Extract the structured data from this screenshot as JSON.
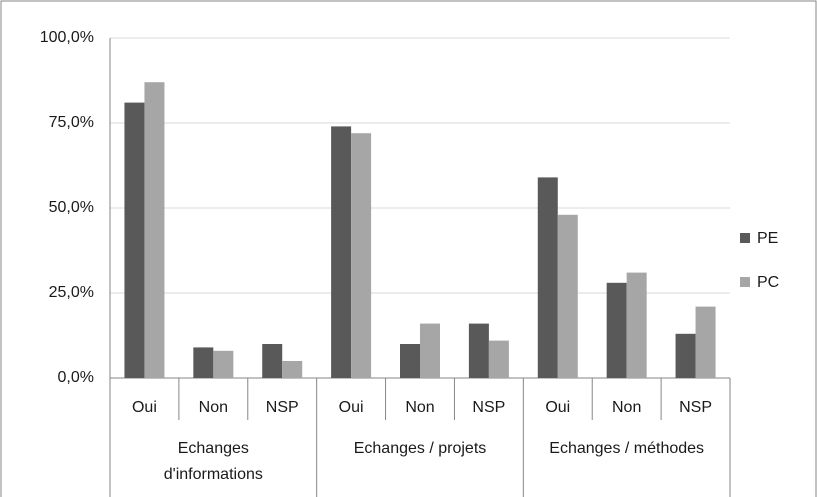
{
  "chart_data": {
    "type": "bar",
    "categories": [
      "Oui",
      "Non",
      "NSP",
      "Oui",
      "Non",
      "NSP",
      "Oui",
      "Non",
      "NSP"
    ],
    "groups": [
      {
        "label": "Echanges d'informations",
        "size": 3
      },
      {
        "label": "Echanges / projets",
        "size": 3
      },
      {
        "label": "Echanges / méthodes",
        "size": 3
      }
    ],
    "series": [
      {
        "name": "PE",
        "color": "#595959",
        "values": [
          81,
          9,
          10,
          74,
          10,
          16,
          59,
          28,
          13
        ]
      },
      {
        "name": "PC",
        "color": "#a6a6a6",
        "values": [
          87,
          8,
          5,
          72,
          16,
          11,
          48,
          31,
          21
        ]
      }
    ],
    "ylim": [
      0,
      100
    ],
    "yticks": [
      {
        "value": 0,
        "label": "0,0%"
      },
      {
        "value": 25,
        "label": "25,0%"
      },
      {
        "value": 50,
        "label": "50,0%"
      },
      {
        "value": 75,
        "label": "75,0%"
      },
      {
        "value": 100,
        "label": "100,0%"
      }
    ],
    "grid": true,
    "legend": "right"
  }
}
